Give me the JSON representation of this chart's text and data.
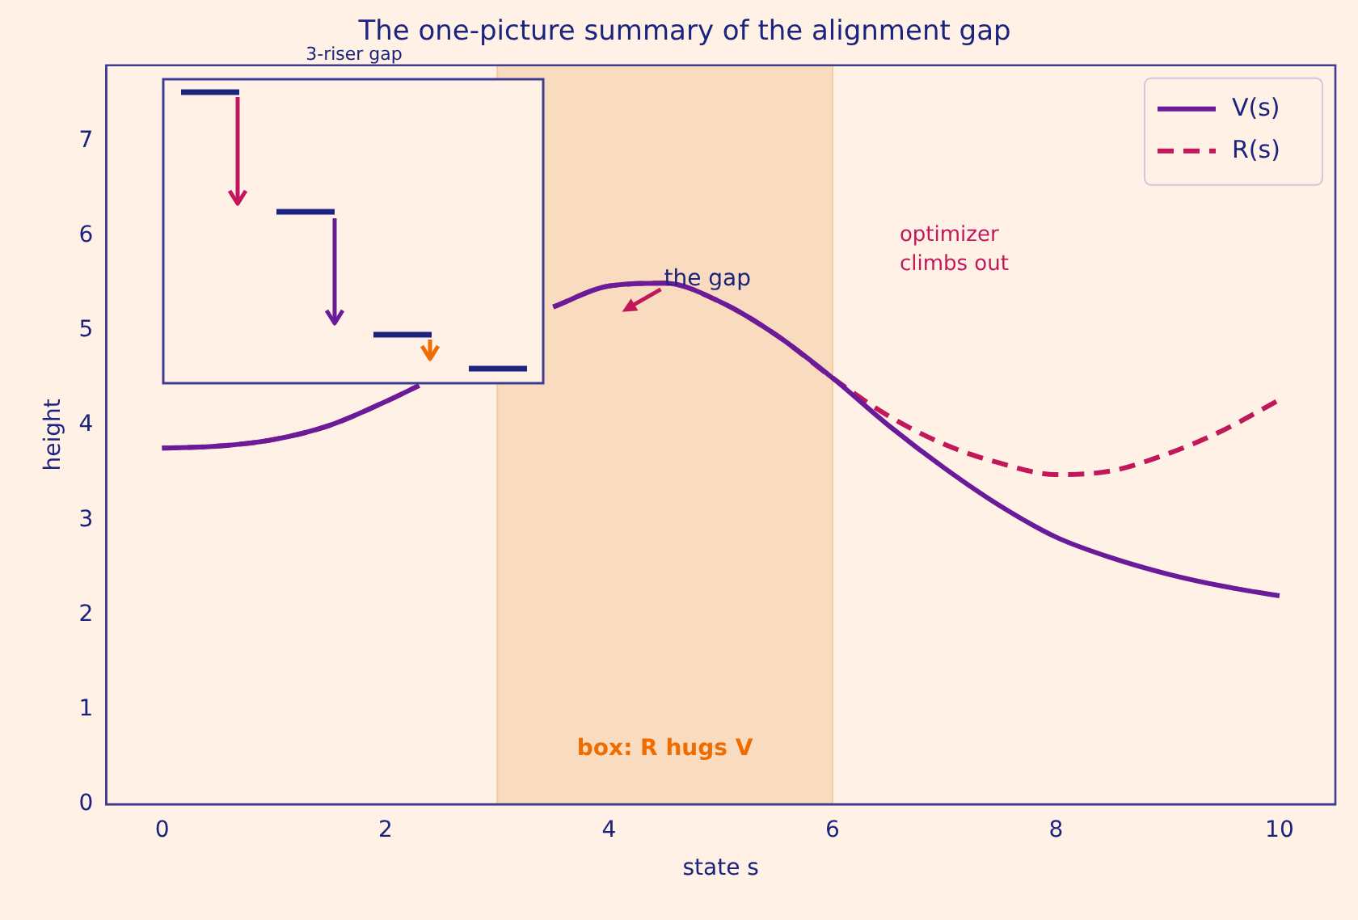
{
  "chart_data": {
    "type": "line",
    "title": "The one-picture summary of the alignment gap",
    "xlabel": "state s",
    "ylabel": "height",
    "x": [
      0,
      0.5,
      1,
      1.5,
      2,
      2.3,
      2.5,
      3,
      3.5,
      4,
      4.5,
      5,
      5.5,
      6,
      6.5,
      7,
      7.5,
      8,
      8.5,
      9,
      9.5,
      10
    ],
    "series": [
      {
        "name": "V(s)",
        "color": "#6a1b9a",
        "line_style": "solid",
        "values": [
          3.76,
          3.78,
          3.85,
          4.0,
          4.25,
          4.42,
          null,
          null,
          5.25,
          5.47,
          5.5,
          5.3,
          4.95,
          4.5,
          4.0,
          3.55,
          3.15,
          2.82,
          2.6,
          2.43,
          2.3,
          2.2
        ]
      },
      {
        "name": "R(s)",
        "color": "#c2185b",
        "line_style": "dashed",
        "values": [
          3.76,
          3.78,
          3.85,
          4.0,
          4.25,
          4.42,
          null,
          null,
          5.25,
          5.47,
          5.5,
          5.3,
          4.95,
          4.5,
          4.1,
          3.8,
          3.6,
          3.48,
          3.52,
          3.7,
          3.95,
          4.27
        ]
      }
    ],
    "xlim": [
      -0.5,
      10.5
    ],
    "xticks": [
      0,
      2,
      4,
      6,
      8,
      10
    ],
    "ylim": [
      0,
      7.8
    ],
    "yticks": [
      0,
      1,
      2,
      3,
      4,
      5,
      6,
      7
    ],
    "bands": [
      {
        "axis": "x",
        "from": 3,
        "to": 6,
        "label": "box: R hugs V",
        "color": "#f9dcc0"
      }
    ],
    "annotations": [
      "3-riser gap",
      {
        "text": "the gap",
        "x": 4,
        "y": 5.47
      },
      "optimizer\nclimbs out"
    ],
    "grid": false,
    "legend": "top right",
    "marker": "none"
  }
}
